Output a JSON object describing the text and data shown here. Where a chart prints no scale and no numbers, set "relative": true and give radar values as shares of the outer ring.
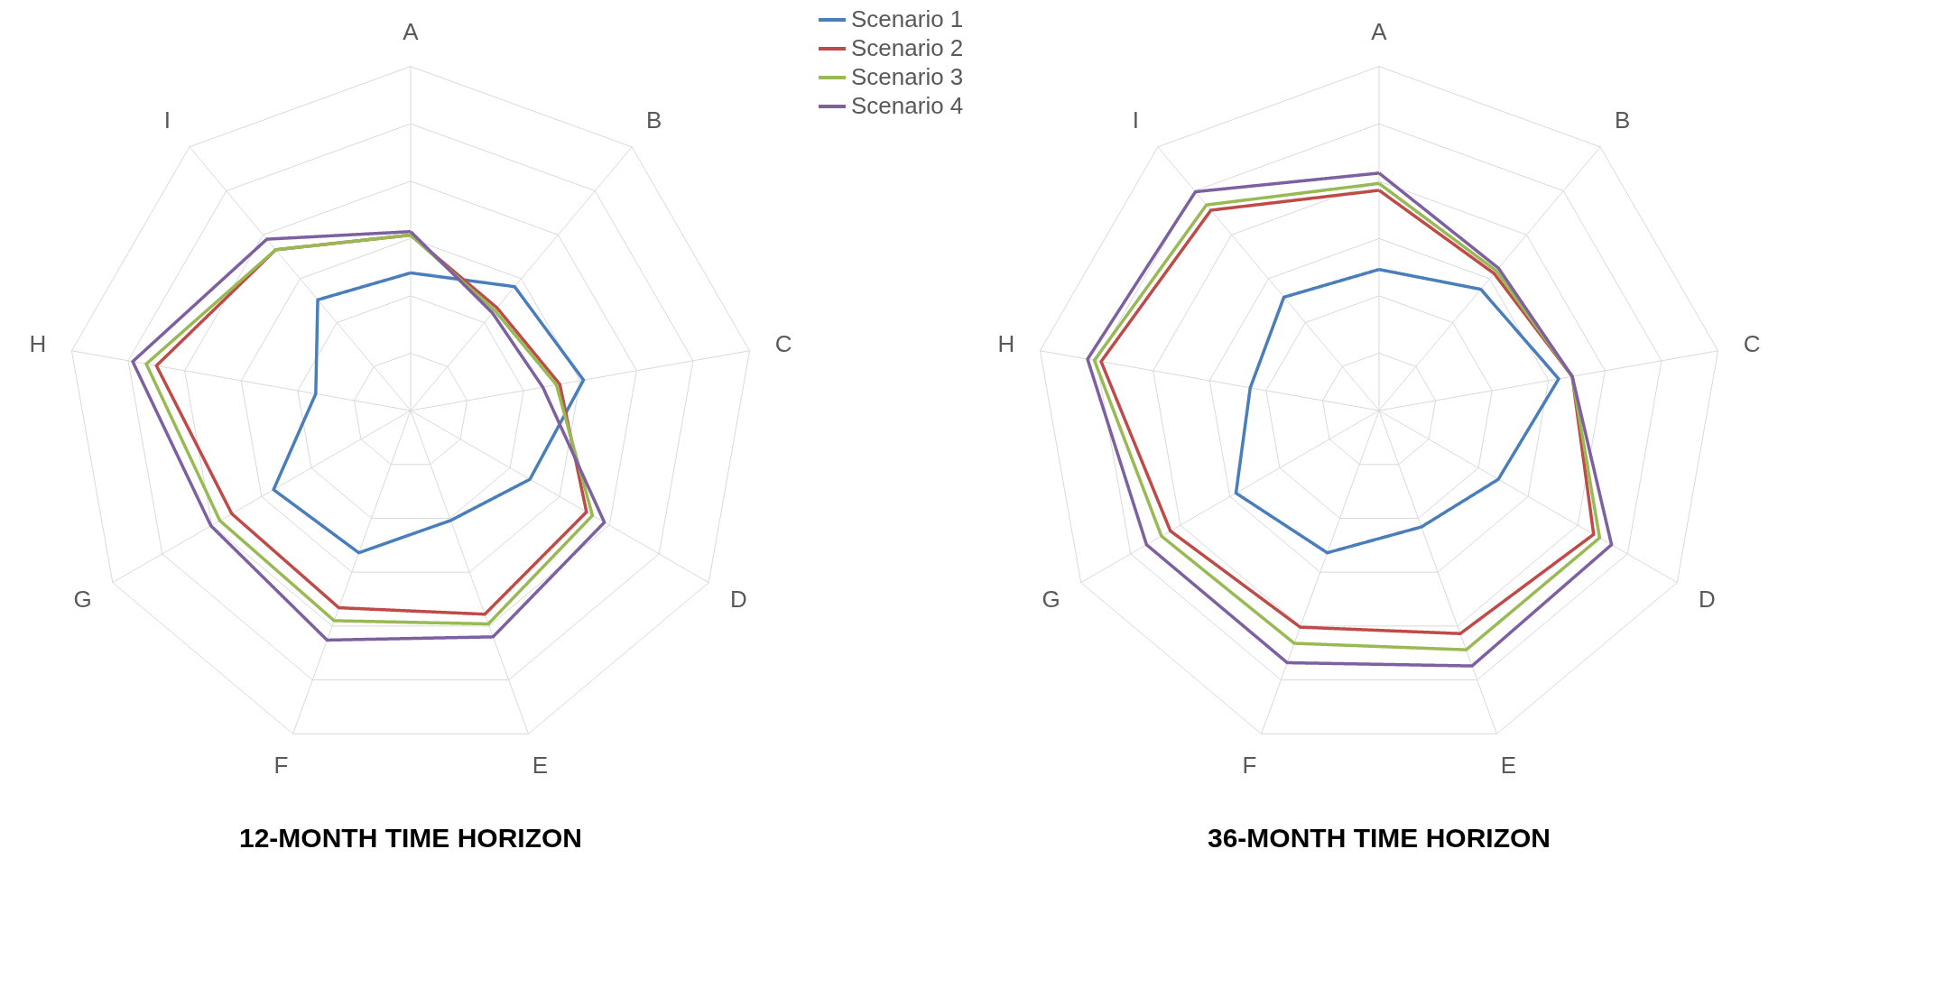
{
  "chart_data": [
    {
      "type": "radar",
      "title": "12-MONTH TIME HORIZON",
      "relative": true,
      "grid": true,
      "legend": "top right",
      "line_style": "solid",
      "marker": "none",
      "categories": [
        "A",
        "B",
        "C",
        "D",
        "E",
        "F",
        "G",
        "H",
        "I"
      ],
      "series": [
        {
          "name": "Scenario 1",
          "color": "#4a7ebb",
          "values": [
            0.4,
            0.47,
            0.51,
            0.4,
            0.34,
            0.44,
            0.46,
            0.28,
            0.42
          ]
        },
        {
          "name": "Scenario 2",
          "color": "#be4b48",
          "values": [
            0.51,
            0.39,
            0.44,
            0.59,
            0.63,
            0.61,
            0.6,
            0.75,
            0.61
          ]
        },
        {
          "name": "Scenario 3",
          "color": "#98b954",
          "values": [
            0.51,
            0.38,
            0.43,
            0.61,
            0.66,
            0.65,
            0.64,
            0.78,
            0.61
          ]
        },
        {
          "name": "Scenario 4",
          "color": "#7d60a0",
          "values": [
            0.52,
            0.37,
            0.39,
            0.65,
            0.7,
            0.71,
            0.67,
            0.82,
            0.65
          ]
        }
      ]
    },
    {
      "type": "radar",
      "title": "36-MONTH TIME HORIZON",
      "relative": true,
      "grid": true,
      "legend": false,
      "line_style": "solid",
      "marker": "none",
      "categories": [
        "A",
        "B",
        "C",
        "D",
        "E",
        "F",
        "G",
        "H",
        "I"
      ],
      "series": [
        {
          "color": "#4a7ebb",
          "values": [
            0.41,
            0.46,
            0.53,
            0.4,
            0.36,
            0.44,
            0.48,
            0.38,
            0.43
          ]
        },
        {
          "color": "#be4b48",
          "values": [
            0.64,
            0.52,
            0.57,
            0.72,
            0.69,
            0.67,
            0.7,
            0.82,
            0.76
          ]
        },
        {
          "color": "#98b954",
          "values": [
            0.66,
            0.53,
            0.57,
            0.74,
            0.74,
            0.72,
            0.73,
            0.84,
            0.78
          ]
        },
        {
          "color": "#7d60a0",
          "values": [
            0.69,
            0.54,
            0.57,
            0.78,
            0.79,
            0.78,
            0.78,
            0.86,
            0.83
          ]
        }
      ]
    }
  ]
}
